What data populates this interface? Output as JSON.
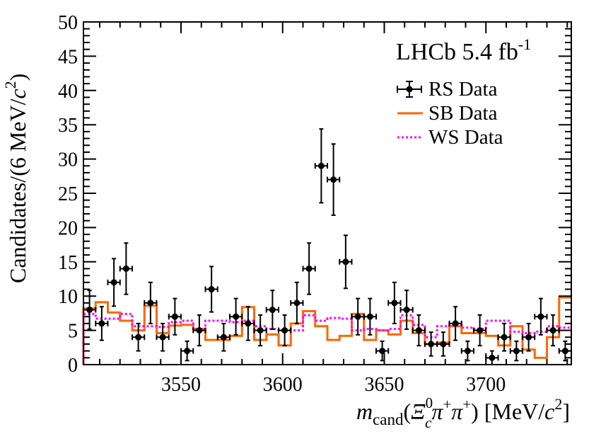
{
  "chart_data": {
    "type": "histogram",
    "experiment_label": "LHCb 5.4 fb",
    "experiment_label_sup": "-1",
    "xlabel": {
      "var": "m",
      "sub": "cand",
      "lparen": "(",
      "xi": "Ξ",
      "xi_sup": "0",
      "xi_sub": "c",
      "pi1": "π",
      "pi1_sup": "+",
      "pi2": "π",
      "pi2_sup": "+",
      "rparen": ")",
      "unit_open": " [MeV/",
      "unit_c": "c",
      "unit_pow": "2",
      "unit_close": "]"
    },
    "ylabel": {
      "main": "Candidates/(6 MeV/",
      "c": "c",
      "pow": "2",
      "close": ")"
    },
    "xlim": [
      3502,
      3742
    ],
    "ylim": [
      0,
      50
    ],
    "bin_width": 6,
    "x_ticks": [
      3550,
      3600,
      3650,
      3700
    ],
    "y_ticks": [
      0,
      5,
      10,
      15,
      20,
      25,
      30,
      35,
      40,
      45,
      50
    ],
    "legend_position": "top-right",
    "legend": [
      {
        "label": "RS Data",
        "style": "points"
      },
      {
        "label": "SB Data",
        "style": "solid"
      },
      {
        "label": "WS Data",
        "style": "dotted"
      }
    ],
    "colors": {
      "rs": "#000000",
      "sb": "#ff6600",
      "ws": "#ff00ff"
    },
    "series": [
      {
        "name": "RS Data",
        "x": [
          3505,
          3511,
          3517,
          3523,
          3529,
          3535,
          3541,
          3547,
          3553,
          3559,
          3565,
          3571,
          3577,
          3583,
          3589,
          3595,
          3601,
          3607,
          3613,
          3619,
          3625,
          3631,
          3637,
          3643,
          3649,
          3655,
          3661,
          3667,
          3673,
          3679,
          3685,
          3691,
          3697,
          3703,
          3709,
          3715,
          3721,
          3727,
          3733,
          3739
        ],
        "values": [
          8,
          6,
          12,
          14,
          4,
          9,
          4,
          7,
          2,
          5,
          11,
          4,
          7,
          6,
          5,
          8,
          5,
          9,
          14,
          29,
          27,
          15,
          7,
          7,
          2,
          9,
          8,
          5,
          3,
          3,
          6,
          2,
          5,
          1,
          4,
          2,
          4,
          7,
          5,
          2
        ]
      },
      {
        "name": "SB Data",
        "bin_edges": [
          3502,
          3508,
          3514,
          3520,
          3526,
          3532,
          3538,
          3544,
          3550,
          3556,
          3562,
          3568,
          3574,
          3580,
          3586,
          3592,
          3598,
          3604,
          3610,
          3616,
          3622,
          3628,
          3634,
          3640,
          3646,
          3652,
          3658,
          3664,
          3670,
          3676,
          3682,
          3688,
          3694,
          3700,
          3706,
          3712,
          3718,
          3724,
          3730,
          3736,
          3742
        ],
        "values": [
          8.2,
          9.1,
          7.6,
          6.4,
          5.0,
          8.6,
          4.6,
          5.7,
          5.8,
          5.2,
          3.6,
          3.6,
          4.2,
          8.4,
          3.6,
          4.4,
          2.8,
          6.0,
          7.8,
          5.6,
          3.6,
          4.2,
          7.4,
          3.6,
          5.0,
          4.4,
          6.4,
          4.6,
          3.0,
          3.2,
          5.6,
          4.6,
          4.6,
          4.2,
          2.8,
          5.6,
          2.2,
          1.0,
          4.0,
          9.8
        ]
      },
      {
        "name": "WS Data",
        "bin_edges": [
          3502,
          3508,
          3514,
          3520,
          3526,
          3532,
          3538,
          3544,
          3550,
          3556,
          3562,
          3568,
          3574,
          3580,
          3586,
          3592,
          3598,
          3604,
          3610,
          3616,
          3622,
          3628,
          3634,
          3640,
          3646,
          3652,
          3658,
          3664,
          3670,
          3676,
          3682,
          3688,
          3694,
          3700,
          3706,
          3712,
          3718,
          3724,
          3730,
          3736,
          3742
        ],
        "values": [
          7.4,
          6.7,
          6.7,
          7.4,
          5.6,
          5.6,
          5.5,
          6.2,
          6.4,
          5.2,
          6.4,
          6.4,
          6.2,
          6.4,
          5.6,
          5.2,
          5.0,
          5.0,
          7.2,
          6.4,
          6.8,
          6.7,
          5.0,
          5.2,
          5.0,
          5.2,
          7.2,
          5.8,
          4.0,
          5.6,
          5.8,
          5.4,
          5.2,
          6.4,
          6.4,
          4.8,
          4.6,
          4.8,
          5.6,
          5.4
        ]
      }
    ]
  }
}
